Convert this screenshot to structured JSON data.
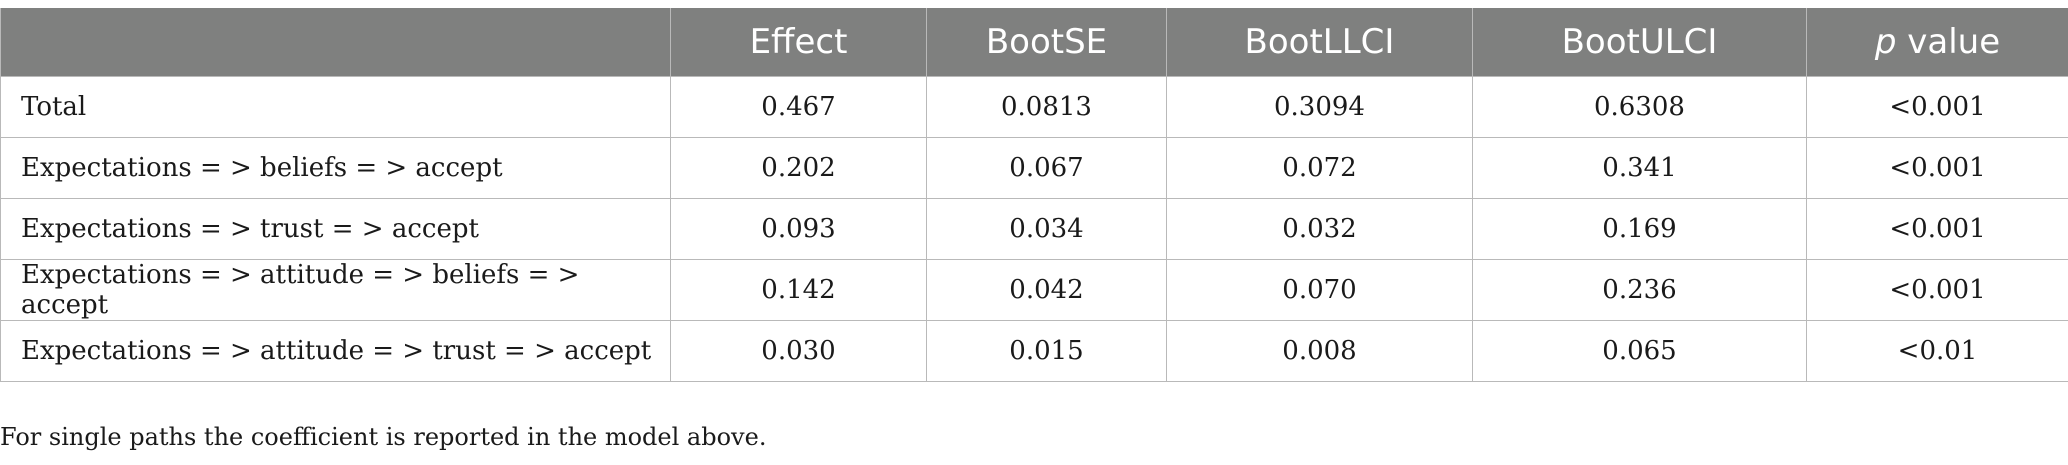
{
  "table": {
    "headers": {
      "col0": "",
      "col1": "Effect",
      "col2": "BootSE",
      "col3": "BootLLCI",
      "col4": "BootULCI",
      "col5_italic": "p",
      "col5_rest": " value"
    },
    "rows": [
      {
        "path": "Total",
        "effect": "0.467",
        "bootse": "0.0813",
        "bootllci": "0.3094",
        "bootulci": "0.6308",
        "p": "<0.001"
      },
      {
        "path": "Expectations = > beliefs = > accept",
        "effect": "0.202",
        "bootse": "0.067",
        "bootllci": "0.072",
        "bootulci": "0.341",
        "p": "<0.001"
      },
      {
        "path": "Expectations = > trust = > accept",
        "effect": "0.093",
        "bootse": "0.034",
        "bootllci": "0.032",
        "bootulci": "0.169",
        "p": "<0.001"
      },
      {
        "path": "Expectations = > attitude = > beliefs = > accept",
        "effect": "0.142",
        "bootse": "0.042",
        "bootllci": "0.070",
        "bootulci": "0.236",
        "p": "<0.001"
      },
      {
        "path": "Expectations = > attitude = > trust = > accept",
        "effect": "0.030",
        "bootse": "0.015",
        "bootllci": "0.008",
        "bootulci": "0.065",
        "p": "<0.01"
      }
    ]
  },
  "footnote": "For single paths the coefficient is reported in the model above.",
  "colors": {
    "header_bg": "#7f807f",
    "header_text": "#ffffff",
    "grid": "#b9b9b9",
    "body_text": "#1a1a1a"
  }
}
